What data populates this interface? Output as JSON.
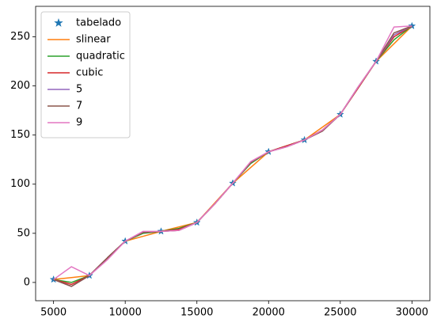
{
  "chart_data": {
    "type": "line",
    "x": [
      5000,
      6250,
      7500,
      8750,
      10000,
      11250,
      12500,
      13750,
      15000,
      16250,
      17500,
      18750,
      20000,
      21250,
      22500,
      23750,
      25000,
      26250,
      27500,
      28750,
      30000
    ],
    "series": [
      {
        "name": "tabelado",
        "color": "#1f77b4",
        "marker": "*",
        "values": [
          3,
          null,
          7,
          null,
          42,
          null,
          52,
          null,
          61,
          null,
          101,
          null,
          133,
          null,
          145,
          null,
          171,
          null,
          225,
          null,
          261
        ]
      },
      {
        "name": "slinear",
        "color": "#ff7f0e",
        "values": [
          3,
          5,
          7,
          24.5,
          42,
          47,
          52,
          56.5,
          61,
          81,
          101,
          117,
          133,
          139,
          145,
          158,
          171,
          198,
          225,
          243,
          261
        ]
      },
      {
        "name": "quadratic",
        "color": "#2ca02c",
        "values": [
          3,
          0,
          7,
          25,
          42,
          50,
          52,
          55,
          61,
          80,
          101,
          121,
          133,
          139,
          145,
          155,
          171,
          198,
          225,
          247,
          261
        ]
      },
      {
        "name": "cubic",
        "color": "#d62728",
        "values": [
          3,
          -2,
          7,
          25,
          42,
          51,
          52,
          54,
          61,
          80,
          101,
          122,
          133,
          139,
          145,
          155,
          171,
          198,
          225,
          250,
          261
        ]
      },
      {
        "name": "5",
        "color": "#9467bd",
        "values": [
          3,
          -4,
          7,
          25,
          42,
          51,
          52,
          53,
          61,
          80,
          101,
          122,
          133,
          138,
          145,
          154,
          171,
          199,
          225,
          252,
          261
        ]
      },
      {
        "name": "7",
        "color": "#8c564b",
        "values": [
          3,
          -4,
          7,
          25,
          42,
          51,
          52,
          53,
          61,
          80,
          101,
          122,
          133,
          138,
          145,
          154,
          171,
          199,
          225,
          254,
          261
        ]
      },
      {
        "name": "9",
        "color": "#e377c2",
        "values": [
          3,
          16,
          7,
          23,
          42,
          52,
          52,
          53,
          61,
          80,
          101,
          123,
          133,
          138,
          145,
          155,
          171,
          199,
          225,
          260,
          261
        ]
      }
    ],
    "xlim": [
      3750,
      31250
    ],
    "xticks": [
      5000,
      10000,
      15000,
      20000,
      25000,
      30000
    ],
    "ylim": [
      -18.6,
      281
    ],
    "yticks": [
      0,
      50,
      100,
      150,
      200,
      250
    ],
    "legend": "upper left"
  }
}
